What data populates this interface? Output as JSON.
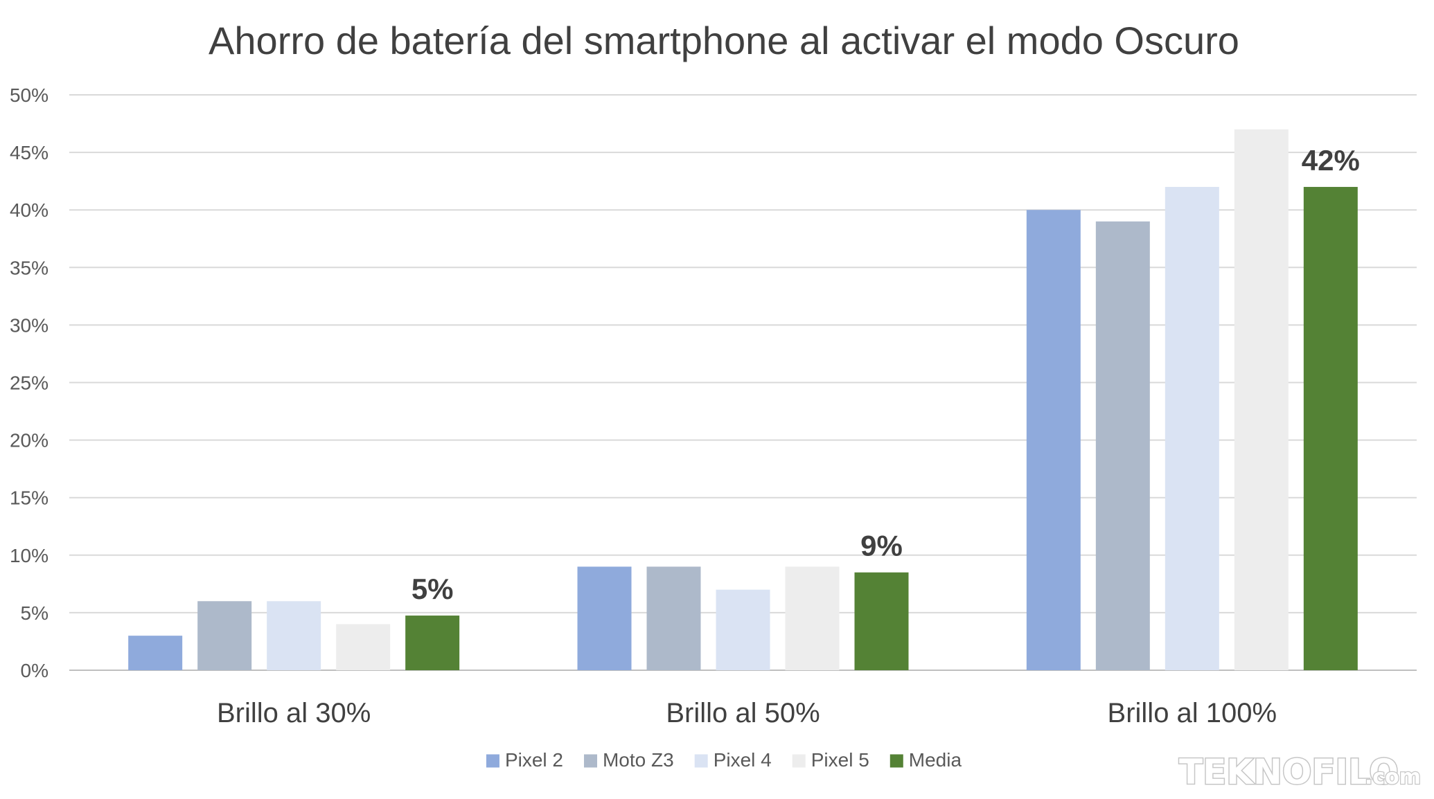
{
  "chart_data": {
    "type": "bar",
    "title": "Ahorro de batería del smartphone al activar el modo Oscuro",
    "categories": [
      "Brillo al 30%",
      "Brillo al 50%",
      "Brillo al 100%"
    ],
    "series": [
      {
        "name": "Pixel 2",
        "color": "#8faadc",
        "values": [
          3,
          9,
          40
        ]
      },
      {
        "name": "Moto Z3",
        "color": "#adb9ca",
        "values": [
          6,
          9,
          39
        ]
      },
      {
        "name": "Pixel 4",
        "color": "#dae3f3",
        "values": [
          6,
          7,
          42
        ]
      },
      {
        "name": "Pixel 5",
        "color": "#ededed",
        "values": [
          4,
          9,
          47
        ]
      },
      {
        "name": "Media",
        "color": "#548235",
        "values": [
          4.75,
          8.5,
          42
        ]
      }
    ],
    "data_labels": [
      {
        "series": "Media",
        "category": "Brillo al 30%",
        "text": "5%"
      },
      {
        "series": "Media",
        "category": "Brillo al 50%",
        "text": "9%"
      },
      {
        "series": "Media",
        "category": "Brillo al 100%",
        "text": "42%"
      }
    ],
    "y_ticks": [
      "0%",
      "5%",
      "10%",
      "15%",
      "20%",
      "25%",
      "30%",
      "35%",
      "40%",
      "45%",
      "50%"
    ],
    "ylim": [
      0,
      50
    ],
    "grid": true,
    "legend_position": "bottom"
  },
  "watermark": {
    "main": "TEKNOFILO",
    "suffix": ".com"
  }
}
